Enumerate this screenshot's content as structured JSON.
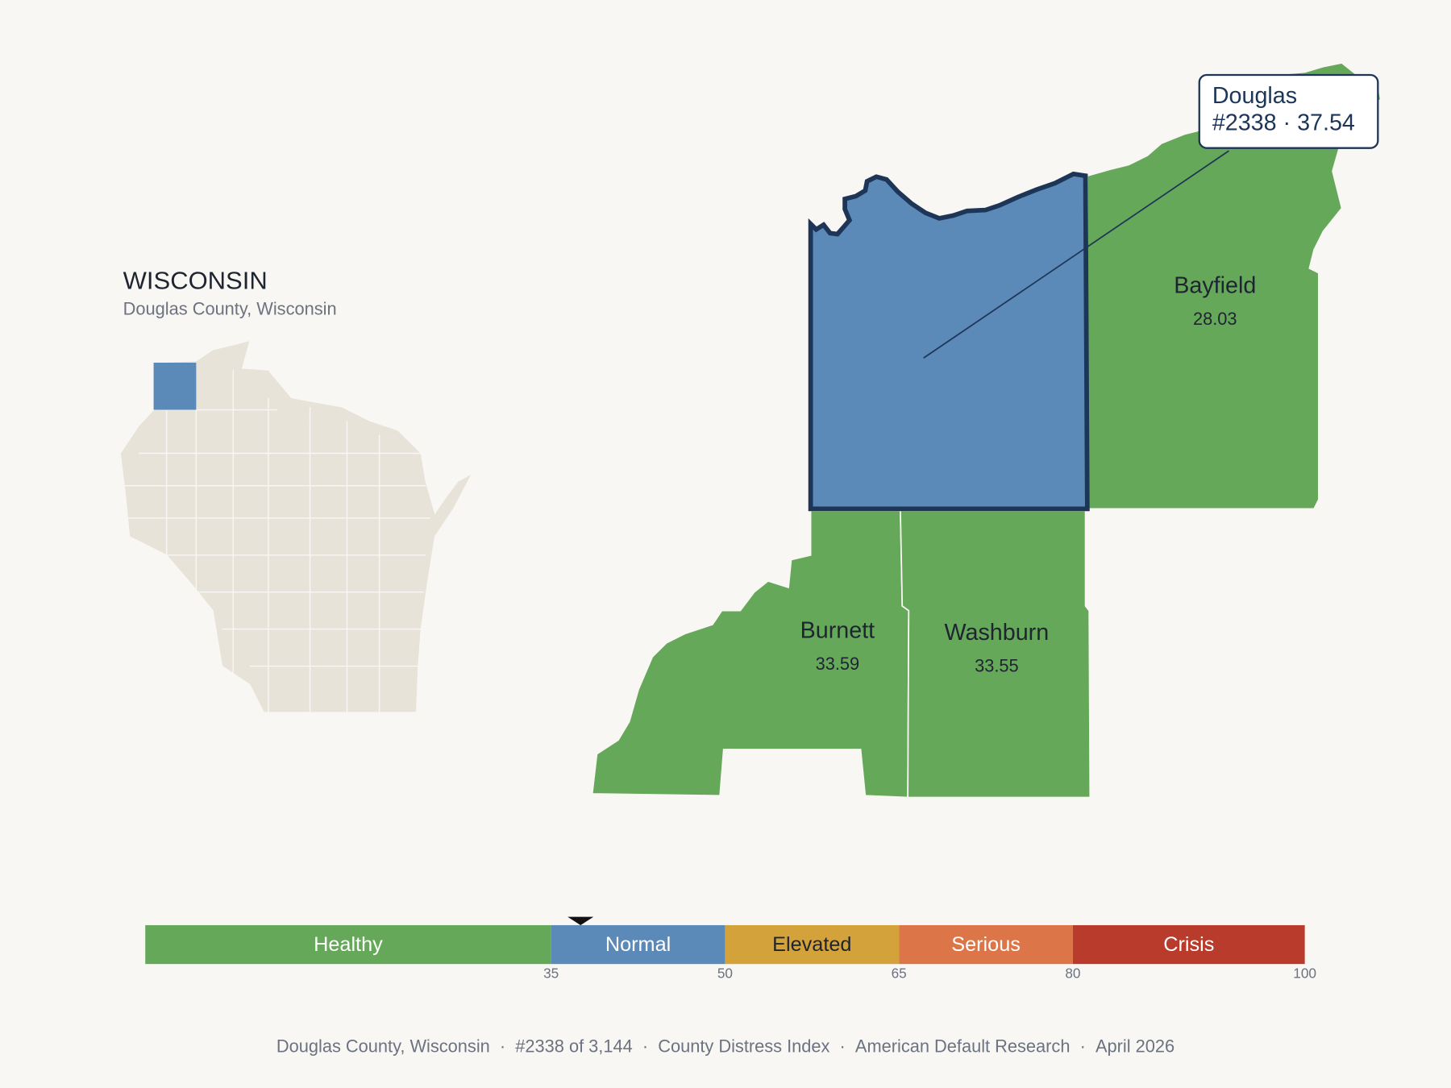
{
  "header": {
    "title": "WISCONSIN",
    "subtitle": "Douglas County, Wisconsin"
  },
  "counties": [
    {
      "name": "Douglas",
      "value": 37.54,
      "selected": true
    },
    {
      "name": "Bayfield",
      "value": 28.03
    },
    {
      "name": "Burnett",
      "value": 33.59
    },
    {
      "name": "Washburn",
      "value": 33.55
    }
  ],
  "tooltip": {
    "title": "Douglas",
    "text": "#2338 · 37.54"
  },
  "scale": {
    "range": [
      0,
      100
    ],
    "ticks": [
      35,
      50,
      65,
      80,
      100
    ],
    "bands": [
      {
        "label": "Healthy",
        "color": "#66a85a"
      },
      {
        "label": "Normal",
        "color": "#5b89b8"
      },
      {
        "label": "Elevated",
        "color": "#d4a23a"
      },
      {
        "label": "Serious",
        "color": "#dc7547"
      },
      {
        "label": "Crisis",
        "color": "#b83b2b"
      }
    ]
  },
  "footer": {
    "items": [
      "Douglas County, Wisconsin",
      "#2338 of 3,144",
      "County Distress Index",
      "American Default Research",
      "April 2026"
    ]
  }
}
